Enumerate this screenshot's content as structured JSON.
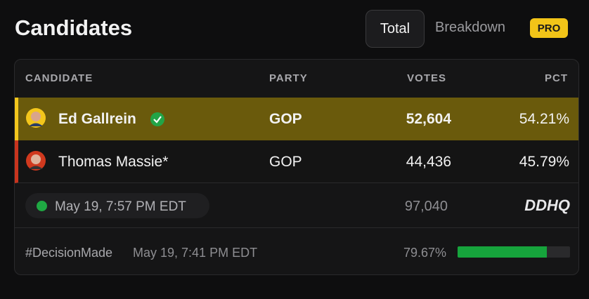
{
  "header": {
    "title": "Candidates",
    "tabs": [
      "Total",
      "Breakdown"
    ],
    "badge": "PRO"
  },
  "table": {
    "columns": [
      "CANDIDATE",
      "PARTY",
      "VOTES",
      "PCT"
    ],
    "rows": [
      [
        "Ed Gallrein",
        "GOP",
        "52,604",
        "54.21%"
      ],
      [
        "Thomas Massie*",
        "GOP",
        "44,436",
        "45.79%"
      ]
    ]
  },
  "footer": {
    "updated": "May 19, 7:57 PM EDT",
    "total_votes": "97,040",
    "logo": "DDHQ",
    "decision_tag": "#DecisionMade",
    "decision_time": "May 19, 7:41 PM EDT",
    "reporting": {
      "value": 79.67,
      "label": "79.67%"
    }
  }
}
